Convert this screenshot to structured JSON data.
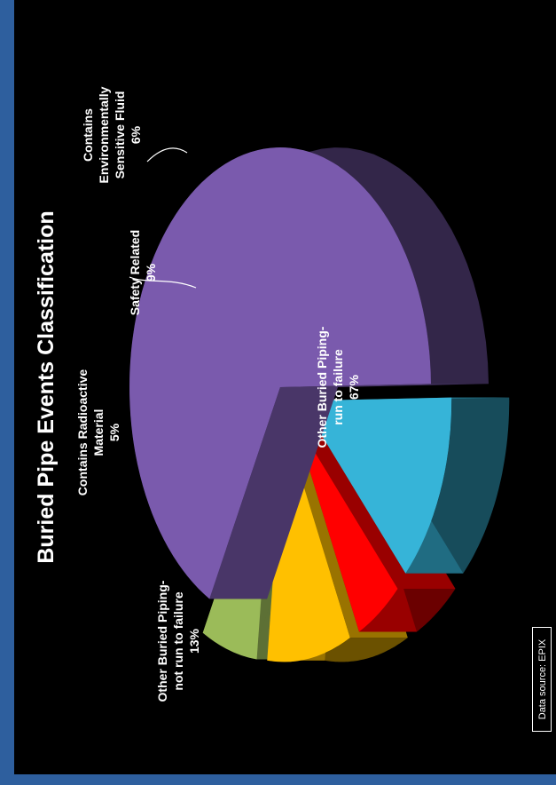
{
  "chart_data": {
    "type": "pie",
    "title": "Buried Pipe Events Classification",
    "source": "Data source:  EPIX",
    "slices": [
      {
        "label": "Other Buried Piping-run to failure",
        "label_lines": [
          "Other Buried Piping-",
          "run to failure",
          "67%"
        ],
        "value": 67,
        "color": "#7a5aad"
      },
      {
        "label": "Other Buried Piping-not run to failure",
        "label_lines": [
          "Other Buried Piping-",
          "not run to failure",
          "13%"
        ],
        "value": 13,
        "color": "#36b4d8"
      },
      {
        "label": "Contains Radioactive Material",
        "label_lines": [
          "Contains Radioactive",
          "Material",
          "5%"
        ],
        "value": 5,
        "color": "#ff0000"
      },
      {
        "label": "Safety Related",
        "label_lines": [
          "Safety Related",
          "9%"
        ],
        "value": 9,
        "color": "#ffc000"
      },
      {
        "label": "Contains Environmentally Sensitive Fluid",
        "label_lines": [
          "Contains",
          "Environmentally",
          "Sensitive Fluid",
          "6%"
        ],
        "value": 6,
        "color": "#9bbb59"
      }
    ]
  }
}
